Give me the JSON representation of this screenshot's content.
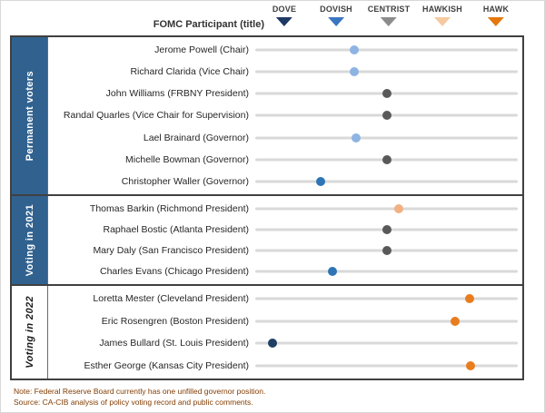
{
  "header": {
    "axis_label": "FOMC Participant (title)",
    "legend": [
      {
        "label": "DOVE",
        "color": "#1F3864",
        "x": 312
      },
      {
        "label": "DOVISH",
        "color": "#3B76C0",
        "x": 369
      },
      {
        "label": "CENTRIST",
        "color": "#8C8C8C",
        "x": 427
      },
      {
        "label": "HAWKISH",
        "color": "#F6C9A0",
        "x": 486
      },
      {
        "label": "HAWK",
        "color": "#E5780C",
        "x": 545
      }
    ]
  },
  "colors": {
    "light_blue": "#8DB4E2",
    "mid_blue": "#2E75B6",
    "navy": "#1F3F64",
    "gray": "#595959",
    "light_orange": "#F2B083",
    "orange": "#E87D1E",
    "sidebar_blue": "#31628F",
    "track": "#D9D9D9",
    "border": "#404040",
    "note_text": "#833C00"
  },
  "groups": [
    {
      "label": "Permanent voters",
      "style": "blue",
      "rows": [
        {
          "name": "Jerome Powell (Chair)",
          "score": -0.62,
          "color": "light_blue"
        },
        {
          "name": "Richard Clarida (Vice Chair)",
          "score": -0.62,
          "color": "light_blue"
        },
        {
          "name": "John Williams (FRBNY President)",
          "score": 0,
          "color": "gray"
        },
        {
          "name": "Randal Quarles (Vice Chair for Supervision)",
          "score": 0,
          "color": "gray"
        },
        {
          "name": "Lael Brainard (Governor)",
          "score": -0.58,
          "color": "light_blue"
        },
        {
          "name": "Michelle Bowman (Governor)",
          "score": 0,
          "color": "gray"
        },
        {
          "name": "Christopher Waller (Governor)",
          "score": -1.25,
          "color": "mid_blue"
        }
      ]
    },
    {
      "label": "Voting in 2021",
      "style": "blue",
      "rows": [
        {
          "name": "Thomas Barkin (Richmond President)",
          "score": 0.21,
          "color": "light_orange"
        },
        {
          "name": "Raphael Bostic (Atlanta President)",
          "score": 0,
          "color": "gray"
        },
        {
          "name": "Mary Daly (San Francisco President)",
          "score": 0,
          "color": "gray"
        },
        {
          "name": "Charles Evans (Chicago President)",
          "score": -1.03,
          "color": "mid_blue"
        }
      ]
    },
    {
      "label": "Voting in 2022",
      "style": "white",
      "rows": [
        {
          "name": "Loretta Mester (Cleveland President)",
          "score": 1.54,
          "color": "orange"
        },
        {
          "name": "Eric Rosengren (Boston President)",
          "score": 1.27,
          "color": "orange"
        },
        {
          "name": "James Bullard (St. Louis President)",
          "score": -2.15,
          "color": "navy"
        },
        {
          "name": "Esther George (Kansas City President)",
          "score": 1.56,
          "color": "orange"
        }
      ]
    }
  ],
  "footer": {
    "note": "Note: Federal Reserve Board currently has one unfilled  governor position.",
    "source": "Source: CA-CIB analysis of policy voting record and public comments."
  },
  "chart_data": {
    "type": "scatter",
    "title": "FOMC Participant (title) hawk-dove stance",
    "x_axis": {
      "tick_labels": [
        "DOVE",
        "DOVISH",
        "CENTRIST",
        "HAWKISH",
        "HAWK"
      ],
      "tick_values": [
        -2,
        -1,
        0,
        1,
        2
      ],
      "xlim": [
        -2.5,
        2.5
      ]
    },
    "points": [
      {
        "name": "Jerome Powell (Chair)",
        "group": "Permanent voters",
        "score": -0.62
      },
      {
        "name": "Richard Clarida (Vice Chair)",
        "group": "Permanent voters",
        "score": -0.62
      },
      {
        "name": "John Williams (FRBNY President)",
        "group": "Permanent voters",
        "score": 0
      },
      {
        "name": "Randal Quarles (Vice Chair for Supervision)",
        "group": "Permanent voters",
        "score": 0
      },
      {
        "name": "Lael Brainard (Governor)",
        "group": "Permanent voters",
        "score": -0.58
      },
      {
        "name": "Michelle Bowman (Governor)",
        "group": "Permanent voters",
        "score": 0
      },
      {
        "name": "Christopher Waller (Governor)",
        "group": "Permanent voters",
        "score": -1.25
      },
      {
        "name": "Thomas Barkin (Richmond President)",
        "group": "Voting in 2021",
        "score": 0.21
      },
      {
        "name": "Raphael Bostic (Atlanta President)",
        "group": "Voting in 2021",
        "score": 0
      },
      {
        "name": "Mary Daly (San Francisco President)",
        "group": "Voting in 2021",
        "score": 0
      },
      {
        "name": "Charles Evans (Chicago President)",
        "group": "Voting in 2021",
        "score": -1.03
      },
      {
        "name": "Loretta Mester (Cleveland President)",
        "group": "Voting in 2022",
        "score": 1.54
      },
      {
        "name": "Eric Rosengren (Boston President)",
        "group": "Voting in 2022",
        "score": 1.27
      },
      {
        "name": "James Bullard (St. Louis President)",
        "group": "Voting in 2022",
        "score": -2.15
      },
      {
        "name": "Esther George (Kansas City President)",
        "group": "Voting in 2022",
        "score": 1.56
      }
    ]
  }
}
